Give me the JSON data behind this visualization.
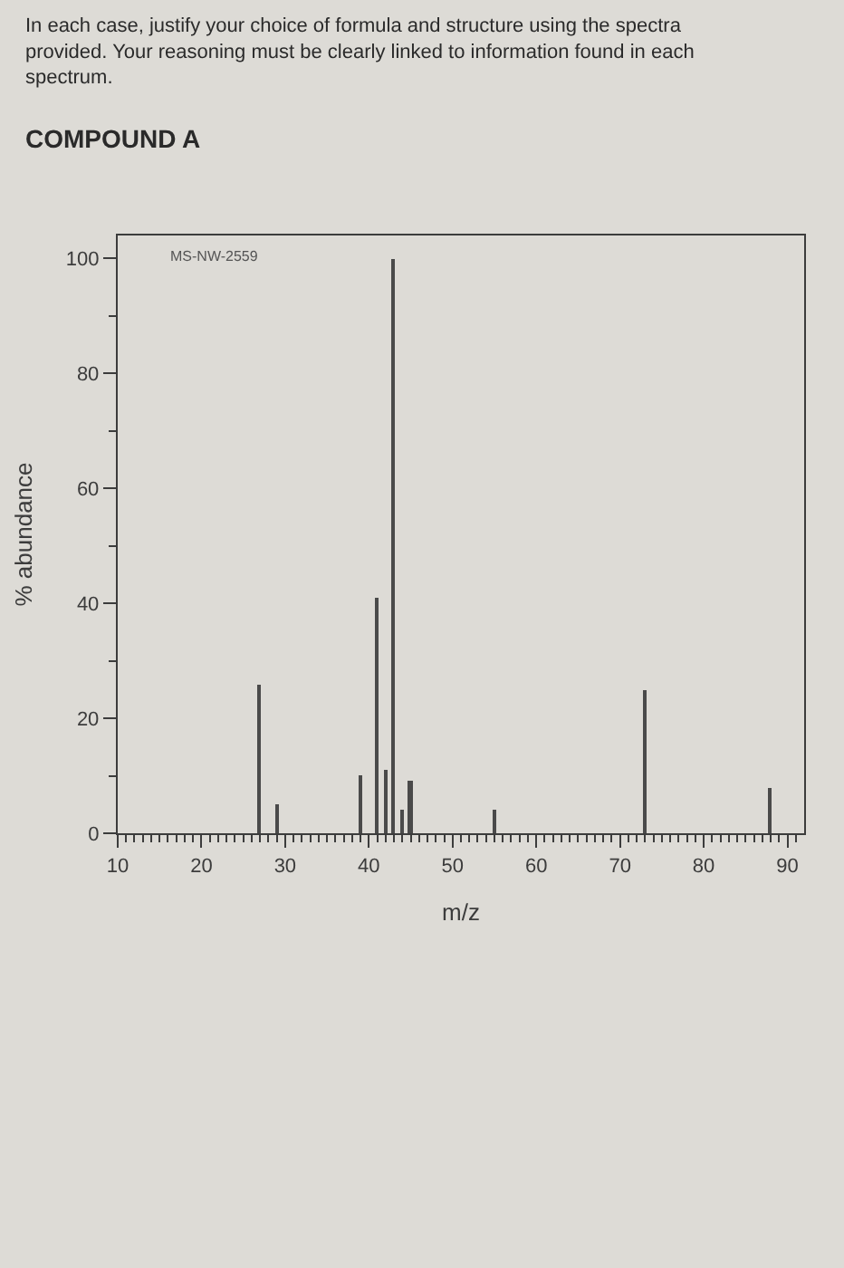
{
  "chart_data": {
    "type": "bar",
    "title": "In each case, justify your choice of formula and structure using the spectra provided. Your reasoning must be clearly linked to information found in each spectrum.",
    "subtitle": "COMPOUND A",
    "annotations": [
      "MS-NW-2559"
    ],
    "xlabel": "m/z",
    "ylabel": "% abundance",
    "x": [
      27,
      29,
      39,
      41,
      42,
      43,
      44,
      45,
      55,
      73,
      88
    ],
    "values": [
      26,
      5,
      10,
      41,
      11,
      100,
      4,
      9,
      4,
      25,
      8
    ],
    "color": "#4a4a4a",
    "xlim": [
      10,
      92
    ],
    "xticks": [
      10,
      {
        "value": 11,
        "label": null
      },
      {
        "value": 12,
        "label": null
      },
      {
        "value": 13,
        "label": null
      },
      {
        "value": 14,
        "label": null
      },
      {
        "value": 15,
        "label": null
      },
      {
        "value": 16,
        "label": null
      },
      {
        "value": 17,
        "label": null
      },
      {
        "value": 18,
        "label": null
      },
      {
        "value": 19,
        "label": null
      },
      20,
      {
        "value": 21,
        "label": null
      },
      {
        "value": 22,
        "label": null
      },
      {
        "value": 23,
        "label": null
      },
      {
        "value": 24,
        "label": null
      },
      {
        "value": 25,
        "label": null
      },
      {
        "value": 26,
        "label": null
      },
      {
        "value": 27,
        "label": null
      },
      {
        "value": 28,
        "label": null
      },
      {
        "value": 29,
        "label": null
      },
      30,
      {
        "value": 31,
        "label": null
      },
      {
        "value": 32,
        "label": null
      },
      {
        "value": 33,
        "label": null
      },
      {
        "value": 34,
        "label": null
      },
      {
        "value": 35,
        "label": null
      },
      {
        "value": 36,
        "label": null
      },
      {
        "value": 37,
        "label": null
      },
      {
        "value": 38,
        "label": null
      },
      {
        "value": 39,
        "label": null
      },
      40,
      {
        "value": 41,
        "label": null
      },
      {
        "value": 42,
        "label": null
      },
      {
        "value": 43,
        "label": null
      },
      {
        "value": 44,
        "label": null
      },
      {
        "value": 45,
        "label": null
      },
      {
        "value": 46,
        "label": null
      },
      {
        "value": 47,
        "label": null
      },
      {
        "value": 48,
        "label": null
      },
      {
        "value": 49,
        "label": null
      },
      50,
      {
        "value": 51,
        "label": null
      },
      {
        "value": 52,
        "label": null
      },
      {
        "value": 53,
        "label": null
      },
      {
        "value": 54,
        "label": null
      },
      {
        "value": 55,
        "label": null
      },
      {
        "value": 56,
        "label": null
      },
      {
        "value": 57,
        "label": null
      },
      {
        "value": 58,
        "label": null
      },
      {
        "value": 59,
        "label": null
      },
      60,
      {
        "value": 61,
        "label": null
      },
      {
        "value": 62,
        "label": null
      },
      {
        "value": 63,
        "label": null
      },
      {
        "value": 64,
        "label": null
      },
      {
        "value": 65,
        "label": null
      },
      {
        "value": 66,
        "label": null
      },
      {
        "value": 67,
        "label": null
      },
      {
        "value": 68,
        "label": null
      },
      {
        "value": 69,
        "label": null
      },
      70,
      {
        "value": 71,
        "label": null
      },
      {
        "value": 72,
        "label": null
      },
      {
        "value": 73,
        "label": null
      },
      {
        "value": 74,
        "label": null
      },
      {
        "value": 75,
        "label": null
      },
      {
        "value": 76,
        "label": null
      },
      {
        "value": 77,
        "label": null
      },
      {
        "value": 78,
        "label": null
      },
      {
        "value": 79,
        "label": null
      },
      80,
      {
        "value": 81,
        "label": null
      },
      {
        "value": 82,
        "label": null
      },
      {
        "value": 83,
        "label": null
      },
      {
        "value": 84,
        "label": null
      },
      {
        "value": 85,
        "label": null
      },
      {
        "value": 86,
        "label": null
      },
      {
        "value": 87,
        "label": null
      },
      {
        "value": 88,
        "label": null
      },
      {
        "value": 89,
        "label": null
      },
      90,
      {
        "value": 91,
        "label": null
      }
    ],
    "ylim": [
      0,
      104
    ],
    "yticks": [
      0,
      {
        "value": 10,
        "label": null
      },
      20,
      {
        "value": 30,
        "label": null
      },
      40,
      {
        "value": 50,
        "label": null
      },
      60,
      {
        "value": 70,
        "label": null
      },
      80,
      {
        "value": 90,
        "label": null
      },
      100
    ]
  }
}
